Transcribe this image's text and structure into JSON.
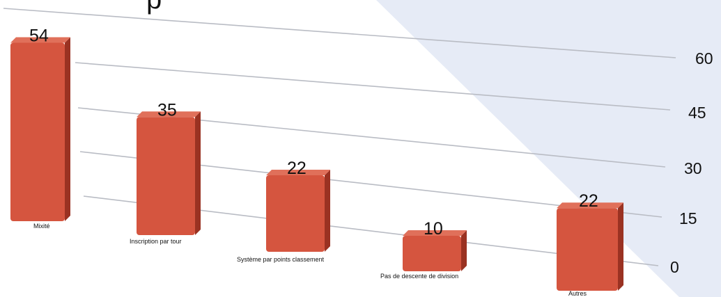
{
  "chart_data": {
    "type": "bar",
    "title": "",
    "xlabel": "",
    "ylabel": "",
    "ylim": [
      0,
      60
    ],
    "yticks": [
      0,
      15,
      30,
      45,
      60
    ],
    "grid": true,
    "categories": [
      "Mixité",
      "Inscription par tour",
      "Système par points classement",
      "Pas de descente de division",
      "Autres"
    ],
    "values": [
      54,
      35,
      22,
      10,
      22
    ],
    "colors": {
      "bar_face": "#d5553f",
      "bar_side": "#9a3222",
      "bar_top": "#e0705a",
      "backdrop": "#e6ebf6",
      "grid": "#b9bcc4"
    }
  }
}
